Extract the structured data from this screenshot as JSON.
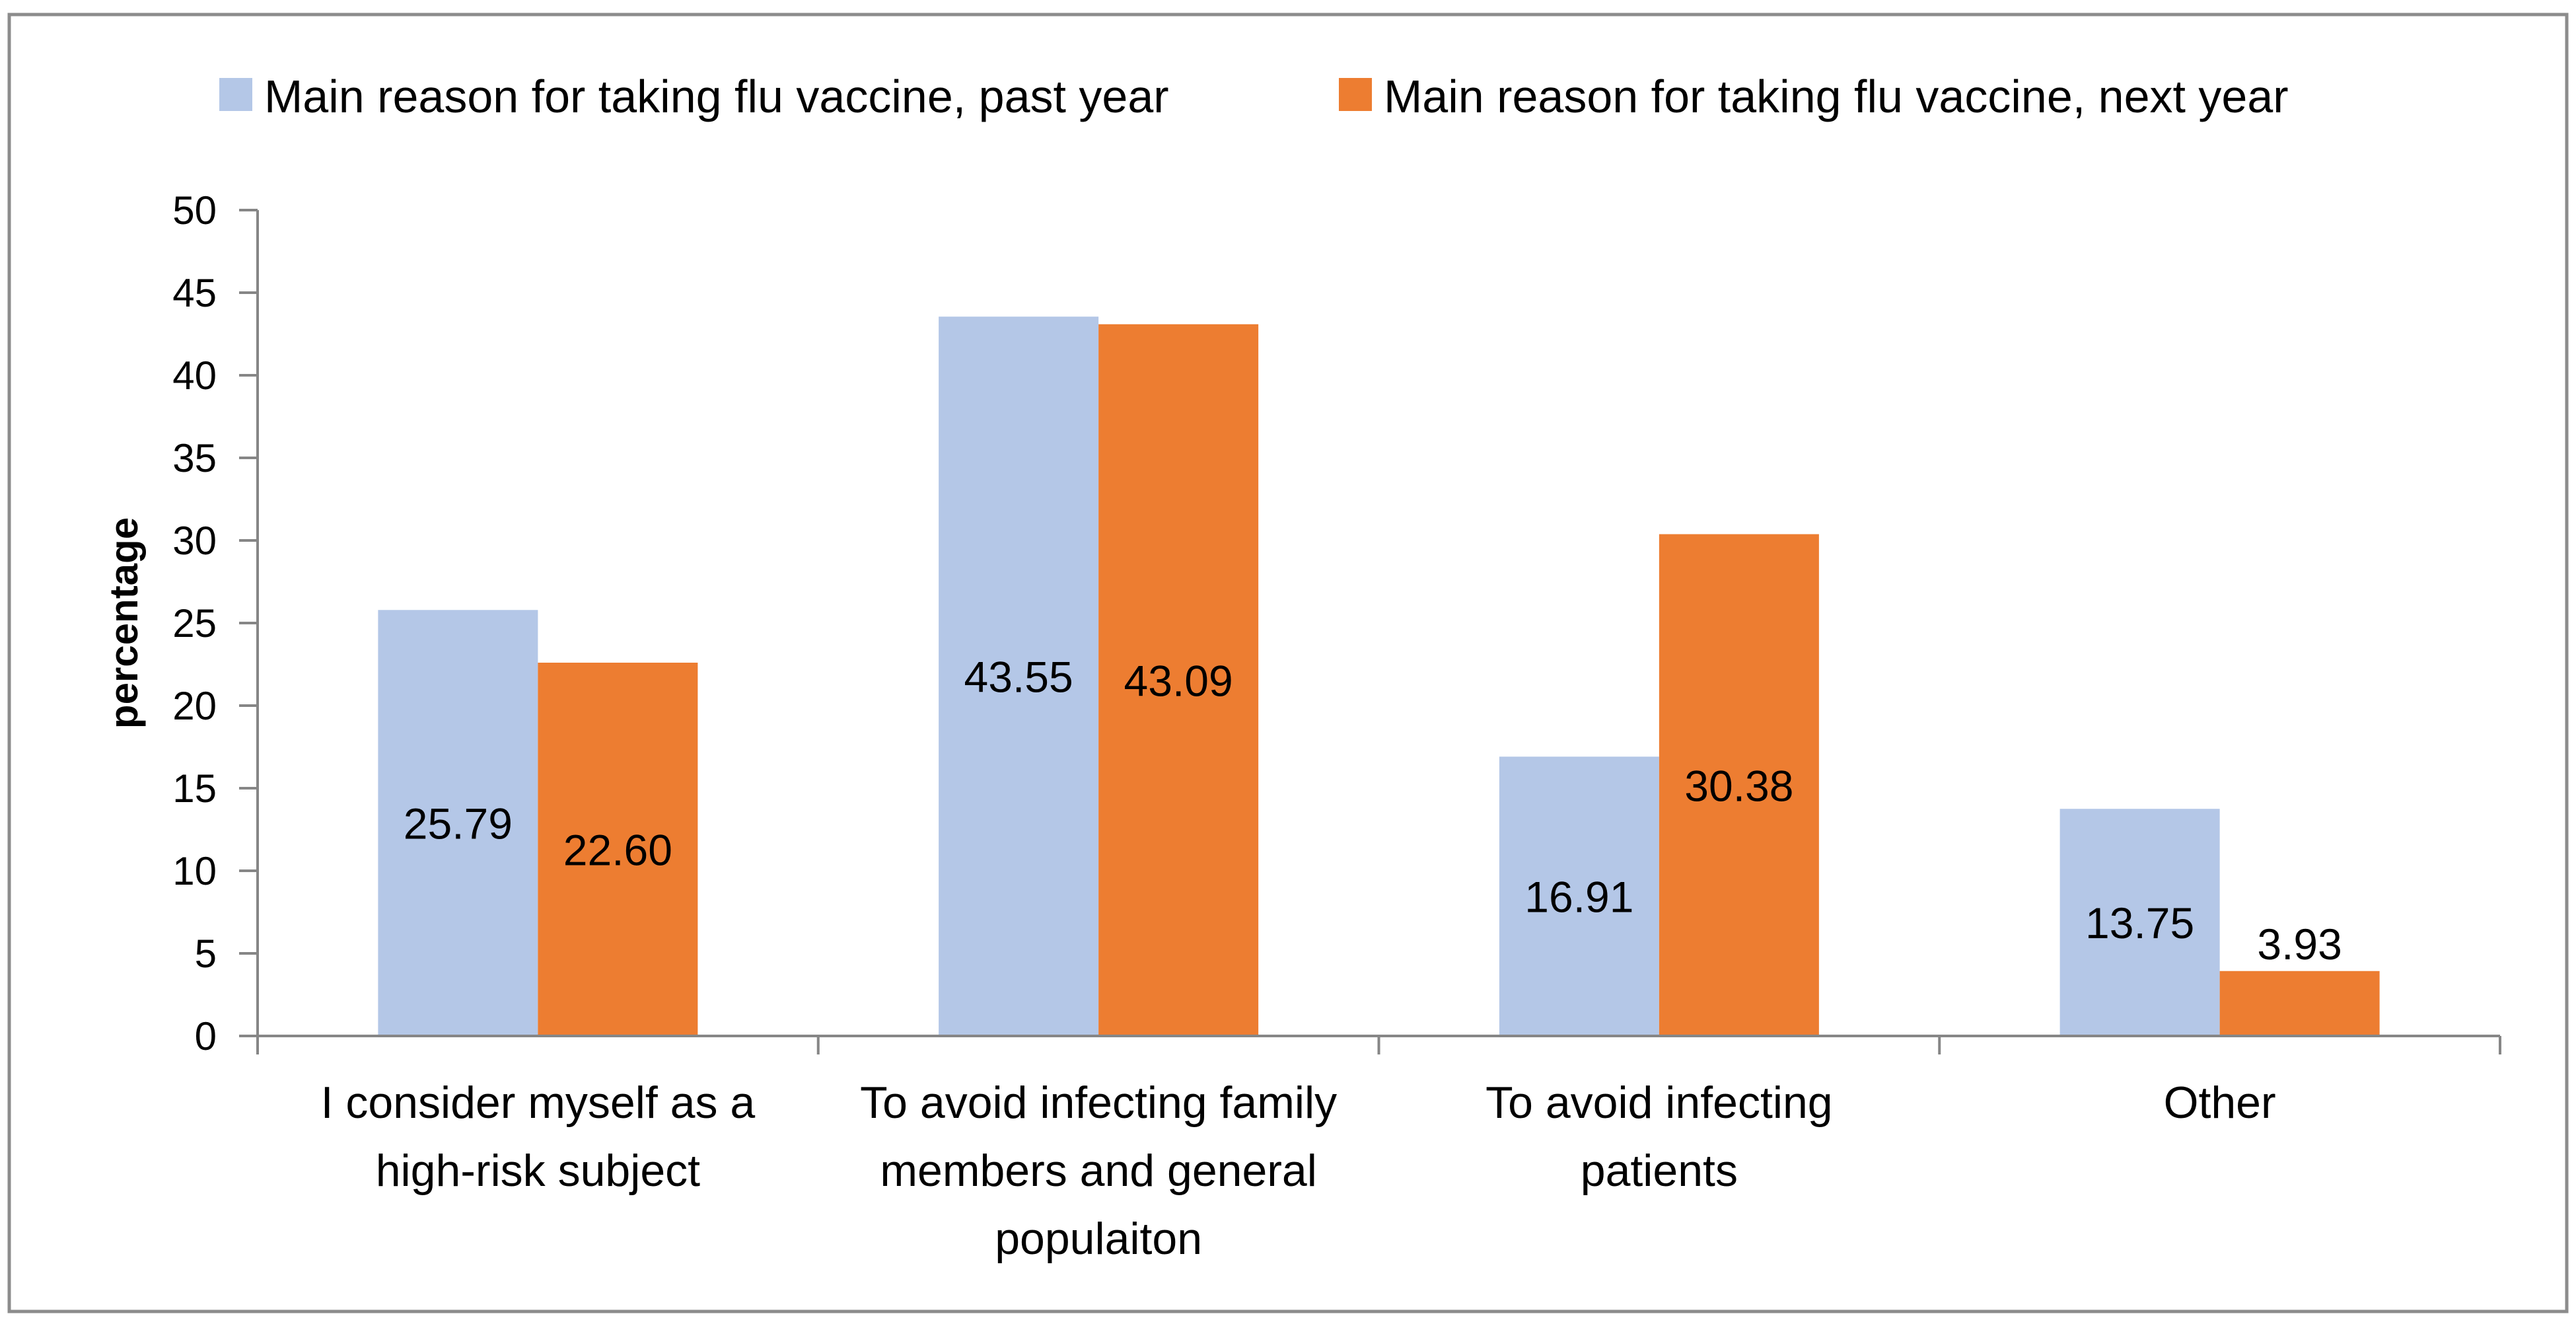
{
  "chart_data": {
    "type": "bar",
    "title": "",
    "xlabel": "",
    "ylabel": "percentage",
    "ylim": [
      0,
      50
    ],
    "ytick_step": 5,
    "yticks": [
      "0",
      "5",
      "10",
      "15",
      "20",
      "25",
      "30",
      "35",
      "40",
      "45",
      "50"
    ],
    "grid": false,
    "legend_position": "top",
    "categories": [
      [
        "I consider myself as a",
        "high-risk subject"
      ],
      [
        "To avoid infecting family",
        "members and general",
        "populaiton"
      ],
      [
        "To avoid infecting",
        "patients"
      ],
      [
        "Other"
      ]
    ],
    "series": [
      {
        "name": "Main reason for taking flu vaccine, past year",
        "color": "#B4C7E7",
        "values": [
          25.79,
          43.55,
          16.91,
          13.75
        ],
        "labels": [
          "25.79",
          "43.55",
          "16.91",
          "13.75"
        ],
        "label_positions": [
          "middle",
          "middle",
          "middle",
          "middle"
        ]
      },
      {
        "name": "Main reason for taking flu vaccine, next year",
        "color": "#ED7D31",
        "values": [
          22.6,
          43.09,
          30.38,
          3.93
        ],
        "labels": [
          "22.60",
          "43.09",
          "30.38",
          "3.93"
        ],
        "label_positions": [
          "middle",
          "middle",
          "middle",
          "above"
        ]
      }
    ]
  },
  "colors": {
    "axis": "#868686",
    "frame": "#8C8C8C",
    "text": "#000000"
  }
}
